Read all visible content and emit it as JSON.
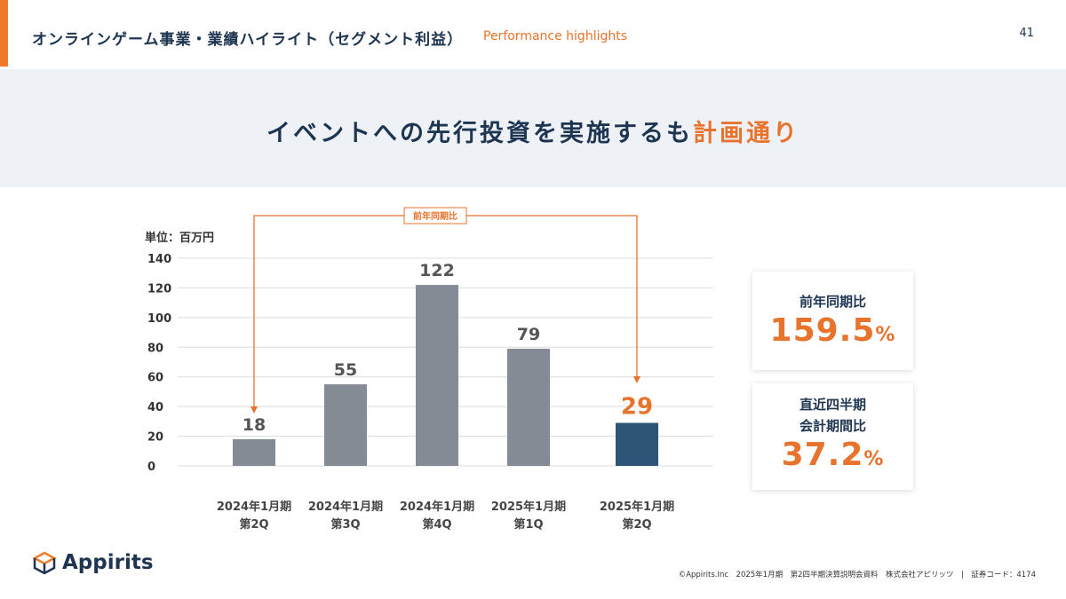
{
  "header": {
    "title": "オンラインゲーム事業・業績ハイライト（セグメント利益）",
    "subtitle": "Performance highlights",
    "page_number": "41"
  },
  "headline": {
    "main": "イベントへの先行投資を実施するも",
    "highlight": "計画通り"
  },
  "colors": {
    "accent": "#e8732c",
    "navy": "#1d3550",
    "bar": "#858b94",
    "bar_highlight": "#2e5577"
  },
  "chart_data": {
    "type": "bar",
    "unit_label": "単位：百万円",
    "categories": [
      "2024年1月期\n第2Q",
      "2024年1月期\n第3Q",
      "2024年1月期\n第4Q",
      "2025年1月期\n第1Q",
      "2025年1月期\n第2Q"
    ],
    "values": [
      18,
      55,
      122,
      79,
      29
    ],
    "highlight_index": 4,
    "ylim": [
      0,
      140
    ],
    "yticks": [
      0,
      20,
      40,
      60,
      80,
      100,
      120,
      140
    ],
    "grid": true,
    "annotation": "前年同期比"
  },
  "cards": [
    {
      "label": "前年同期比",
      "value": "159.5",
      "unit": "%"
    },
    {
      "label": "直近四半期\n会計期間比",
      "value": "37.2",
      "unit": "%"
    }
  ],
  "footer": {
    "logo": "Appirits",
    "text": "©Appirits.Inc　2025年1月期　第2四半期決算説明会資料　株式会社アピリッツ　|　証券コード：4174"
  }
}
